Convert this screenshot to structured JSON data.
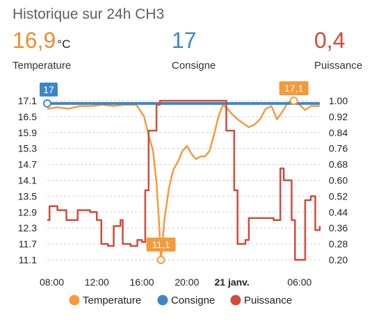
{
  "card": {
    "title": "Historique sur 24h CH3",
    "stats": {
      "temperature": {
        "value": "16,9",
        "unit": "°C",
        "label": "Temperature"
      },
      "consigne": {
        "value": "17",
        "label": "Consigne"
      },
      "puissance": {
        "value": "0,4",
        "label": "Puissance"
      }
    }
  },
  "chart_data": {
    "type": "line",
    "colors": {
      "temperature": "#f59a3a",
      "consigne": "#3d86c6",
      "puissance": "#d24a3a"
    },
    "x_ticks": [
      {
        "label": "08:00",
        "t": 8
      },
      {
        "label": "12:00",
        "t": 12
      },
      {
        "label": "16:00",
        "t": 16
      },
      {
        "label": "20:00",
        "t": 20
      },
      {
        "label": "21 janv.",
        "t": 24,
        "bold": true
      },
      {
        "label": "06:00",
        "t": 30
      }
    ],
    "x_range": [
      7.6,
      31.8
    ],
    "y_left": {
      "ticks": [
        "17.1",
        "16.5",
        "15.9",
        "15.3",
        "14.7",
        "14.1",
        "13.5",
        "12.9",
        "12.3",
        "11.7",
        "11.1"
      ],
      "range": [
        11.1,
        17.1
      ]
    },
    "y_right": {
      "ticks": [
        "1.00",
        "0.92",
        "0.84",
        "0.76",
        "0.68",
        "0.60",
        "0.52",
        "0.44",
        "0.36",
        "0.28",
        "0.20"
      ],
      "range": [
        0.2,
        1.0
      ]
    },
    "series": [
      {
        "name": "Temperature",
        "axis": "left",
        "points": [
          [
            7.6,
            16.8
          ],
          [
            8.5,
            16.85
          ],
          [
            9.5,
            16.8
          ],
          [
            10.5,
            16.9
          ],
          [
            11.5,
            16.9
          ],
          [
            12.5,
            16.95
          ],
          [
            13.5,
            16.9
          ],
          [
            14.5,
            16.95
          ],
          [
            15.5,
            16.95
          ],
          [
            16.2,
            16.5
          ],
          [
            16.6,
            15.8
          ],
          [
            17.0,
            15.2
          ],
          [
            17.3,
            14.0
          ],
          [
            17.5,
            12.7
          ],
          [
            17.7,
            11.1
          ],
          [
            18.0,
            12.6
          ],
          [
            18.4,
            13.8
          ],
          [
            18.8,
            14.5
          ],
          [
            19.2,
            14.8
          ],
          [
            19.6,
            15.2
          ],
          [
            20.0,
            15.4
          ],
          [
            20.4,
            15.1
          ],
          [
            20.8,
            14.9
          ],
          [
            21.2,
            15.0
          ],
          [
            21.6,
            15.0
          ],
          [
            22.0,
            15.2
          ],
          [
            22.4,
            15.8
          ],
          [
            22.8,
            16.5
          ],
          [
            23.2,
            16.95
          ],
          [
            23.6,
            16.8
          ],
          [
            24.0,
            16.6
          ],
          [
            24.5,
            16.4
          ],
          [
            25.0,
            16.25
          ],
          [
            25.5,
            16.1
          ],
          [
            26.0,
            16.2
          ],
          [
            26.5,
            16.4
          ],
          [
            27.0,
            16.8
          ],
          [
            27.5,
            16.9
          ],
          [
            28.0,
            16.4
          ],
          [
            28.5,
            16.7
          ],
          [
            29.0,
            17.05
          ],
          [
            29.5,
            17.1
          ],
          [
            30.0,
            16.95
          ],
          [
            30.5,
            16.75
          ],
          [
            31.0,
            16.9
          ],
          [
            31.8,
            16.9
          ]
        ]
      },
      {
        "name": "Consigne",
        "axis": "left",
        "points": [
          [
            7.6,
            17.0
          ],
          [
            31.8,
            17.0
          ]
        ]
      },
      {
        "name": "Puissance",
        "axis": "right",
        "step": true,
        "points": [
          [
            7.6,
            0.4
          ],
          [
            7.8,
            0.47
          ],
          [
            8.5,
            0.45
          ],
          [
            9.3,
            0.4
          ],
          [
            10.3,
            0.45
          ],
          [
            11.4,
            0.44
          ],
          [
            12.0,
            0.4
          ],
          [
            12.4,
            0.28
          ],
          [
            13.0,
            0.27
          ],
          [
            13.5,
            0.37
          ],
          [
            14.1,
            0.4
          ],
          [
            14.3,
            0.28
          ],
          [
            15.0,
            0.27
          ],
          [
            15.6,
            0.3
          ],
          [
            16.0,
            0.29
          ],
          [
            16.3,
            0.55
          ],
          [
            16.6,
            0.85
          ],
          [
            17.3,
            0.98
          ],
          [
            17.6,
            1.0
          ],
          [
            23.1,
            1.0
          ],
          [
            23.5,
            0.85
          ],
          [
            24.2,
            0.55
          ],
          [
            24.5,
            0.28
          ],
          [
            25.2,
            0.3
          ],
          [
            25.5,
            0.41
          ],
          [
            27.7,
            0.4
          ],
          [
            28.3,
            0.66
          ],
          [
            28.6,
            0.6
          ],
          [
            29.3,
            0.4
          ],
          [
            29.6,
            0.2
          ],
          [
            30.2,
            0.2
          ],
          [
            30.5,
            0.5
          ],
          [
            31.0,
            0.52
          ],
          [
            31.4,
            0.35
          ],
          [
            31.8,
            0.37
          ]
        ]
      }
    ],
    "annotations": [
      {
        "text": "17",
        "series": "Consigne",
        "x": 7.6,
        "y": 17.0
      },
      {
        "text": "17,1",
        "series": "Temperature",
        "x": 29.5,
        "y": 17.1
      },
      {
        "text": "11,1",
        "series": "Temperature",
        "x": 17.7,
        "y": 11.1
      }
    ],
    "legend": {
      "position": "bottom",
      "entries": [
        {
          "label": "Temperature",
          "color": "#f59a3a"
        },
        {
          "label": "Consigne",
          "color": "#3d86c6"
        },
        {
          "label": "Puissance",
          "color": "#d24a3a"
        }
      ]
    }
  }
}
